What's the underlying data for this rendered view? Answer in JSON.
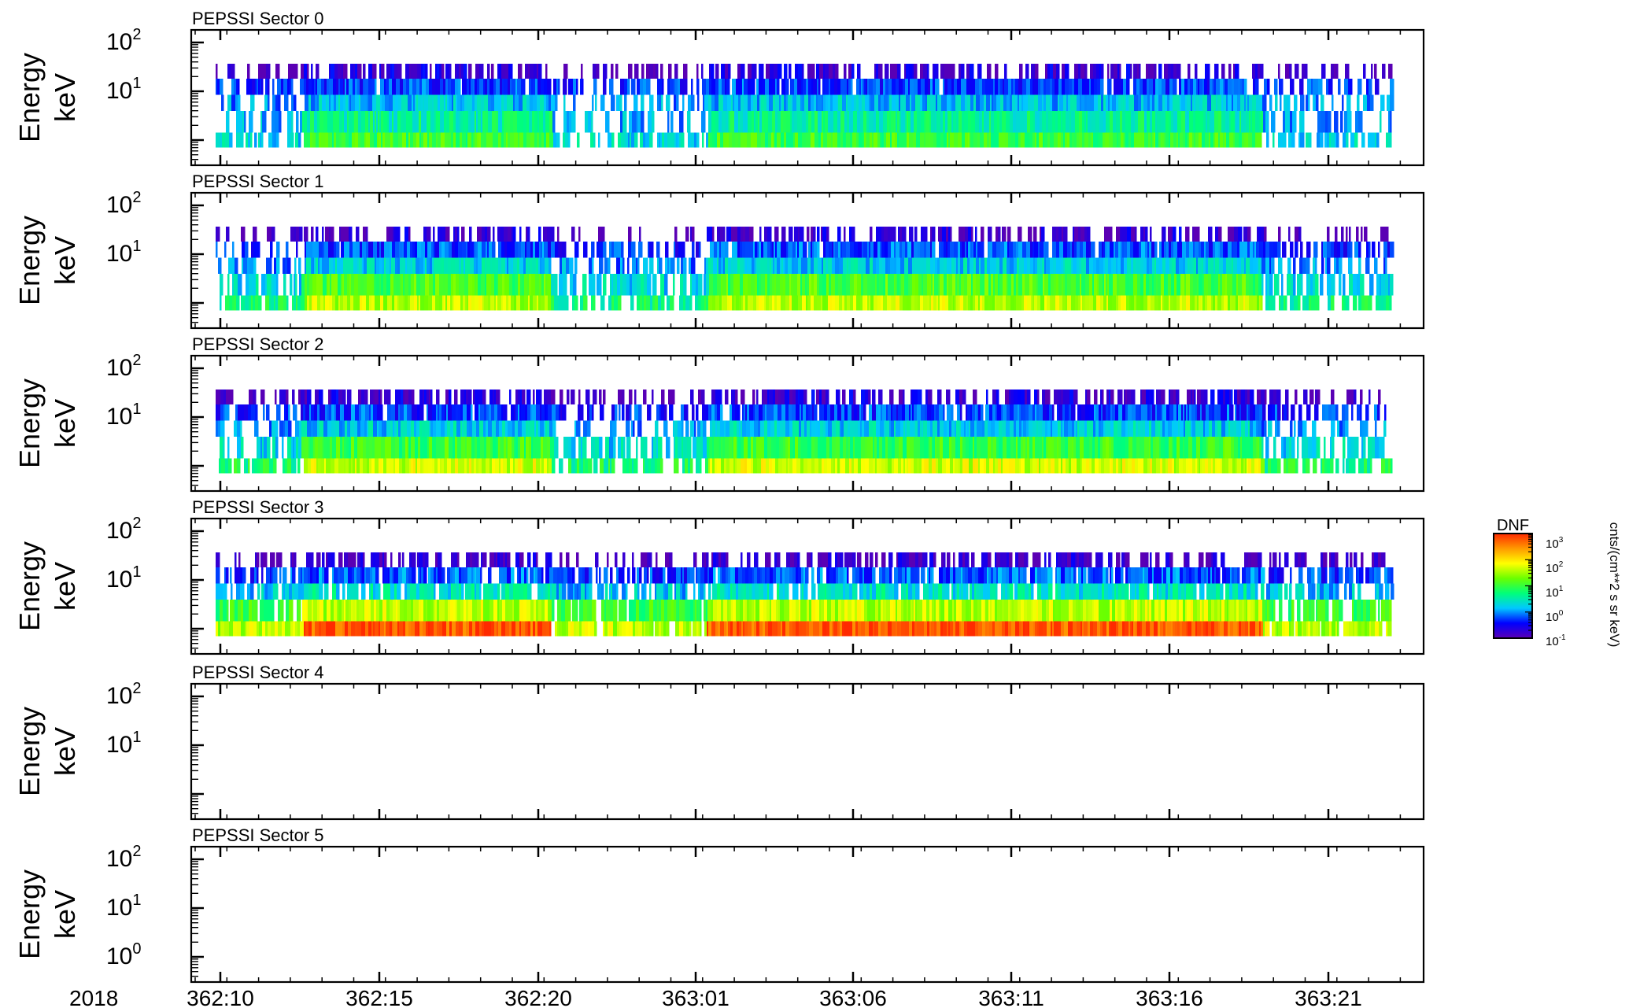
{
  "chart_data": {
    "type": "heatmap",
    "xaxis": {
      "year": "2018",
      "tick_labels": [
        "362:10",
        "362:15",
        "362:20",
        "363:01",
        "363:06",
        "363:11",
        "363:16",
        "363:21"
      ]
    },
    "yaxis": {
      "label_line1": "Energy",
      "label_line2": "keV",
      "scale": "log"
    },
    "colorbar": {
      "title": "DNF",
      "unit": "cnts/(cm**2 s sr keV)",
      "scale": "log",
      "range": [
        0.1,
        1000
      ],
      "tick_exponents": [
        "3",
        "2",
        "1",
        "0",
        "-1"
      ],
      "colors": [
        "#5a00b4",
        "#0000ff",
        "#00c8ff",
        "#00ff7a",
        "#6aff00",
        "#ffff00",
        "#ff9900",
        "#ff2a00"
      ]
    },
    "panels": [
      {
        "title": "PEPSSI Sector 0",
        "ytick_exponents": [
          "2",
          "1"
        ],
        "has_data": true,
        "bands": [
          {
            "label": "highest",
            "level_inactive": 0.1,
            "level_active": 0.2,
            "fill_inactive": 0.35,
            "fill_active": 0.65
          },
          {
            "label": "upper",
            "level_inactive": 0.5,
            "level_active": 0.55,
            "fill_inactive": 0.55,
            "fill_active": 0.95
          },
          {
            "label": "mid-upper",
            "level_inactive": 0.95,
            "level_active": 1.5,
            "fill_inactive": 0.5,
            "fill_active": 1.0
          },
          {
            "label": "mid-lower",
            "level_inactive": 1.2,
            "level_active": 4,
            "fill_inactive": 0.45,
            "fill_active": 1.0
          },
          {
            "label": "lowest",
            "level_inactive": 2,
            "level_active": 10,
            "fill_inactive": 0.7,
            "fill_active": 1.0
          }
        ]
      },
      {
        "title": "PEPSSI Sector 1",
        "ytick_exponents": [
          "2",
          "1"
        ],
        "has_data": true,
        "bands": [
          {
            "label": "highest",
            "level_inactive": 0.1,
            "level_active": 0.18,
            "fill_inactive": 0.3,
            "fill_active": 0.6
          },
          {
            "label": "upper",
            "level_inactive": 0.45,
            "level_active": 0.6,
            "fill_inactive": 0.55,
            "fill_active": 0.95
          },
          {
            "label": "mid-upper",
            "level_inactive": 0.9,
            "level_active": 1.8,
            "fill_inactive": 0.5,
            "fill_active": 1.0
          },
          {
            "label": "mid-lower",
            "level_inactive": 2,
            "level_active": 12,
            "fill_inactive": 0.6,
            "fill_active": 1.0
          },
          {
            "label": "lowest",
            "level_inactive": 5,
            "level_active": 40,
            "fill_inactive": 0.75,
            "fill_active": 1.0
          }
        ]
      },
      {
        "title": "PEPSSI Sector 2",
        "ytick_exponents": [
          "2",
          "1"
        ],
        "has_data": true,
        "bands": [
          {
            "label": "highest",
            "level_inactive": 0.1,
            "level_active": 0.2,
            "fill_inactive": 0.45,
            "fill_active": 0.7
          },
          {
            "label": "upper",
            "level_inactive": 0.45,
            "level_active": 0.55,
            "fill_inactive": 0.6,
            "fill_active": 0.95
          },
          {
            "label": "mid-upper",
            "level_inactive": 0.95,
            "level_active": 1.8,
            "fill_inactive": 0.5,
            "fill_active": 1.0
          },
          {
            "label": "mid-lower",
            "level_inactive": 2,
            "level_active": 10,
            "fill_inactive": 0.6,
            "fill_active": 1.0
          },
          {
            "label": "lowest",
            "level_inactive": 6,
            "level_active": 50,
            "fill_inactive": 0.75,
            "fill_active": 1.0
          }
        ]
      },
      {
        "title": "PEPSSI Sector 3",
        "ytick_exponents": [
          "2",
          "1"
        ],
        "has_data": true,
        "bands": [
          {
            "label": "highest",
            "level_inactive": 0.1,
            "level_active": 0.15,
            "fill_inactive": 0.45,
            "fill_active": 0.6
          },
          {
            "label": "upper",
            "level_inactive": 0.5,
            "level_active": 0.7,
            "fill_inactive": 0.7,
            "fill_active": 0.85
          },
          {
            "label": "mid-upper",
            "level_inactive": 1.5,
            "level_active": 2.5,
            "fill_inactive": 0.65,
            "fill_active": 0.85
          },
          {
            "label": "mid-lower",
            "level_inactive": 10,
            "level_active": 40,
            "fill_inactive": 0.8,
            "fill_active": 1.0
          },
          {
            "label": "lowest",
            "level_inactive": 40,
            "level_active": 600,
            "fill_inactive": 0.9,
            "fill_active": 1.0
          }
        ]
      },
      {
        "title": "PEPSSI Sector 4",
        "ytick_exponents": [
          "2",
          "1"
        ],
        "has_data": false,
        "bands": []
      },
      {
        "title": "PEPSSI Sector 5",
        "ytick_exponents": [
          "2",
          "1",
          "0"
        ],
        "has_data": false,
        "bands": []
      }
    ]
  }
}
